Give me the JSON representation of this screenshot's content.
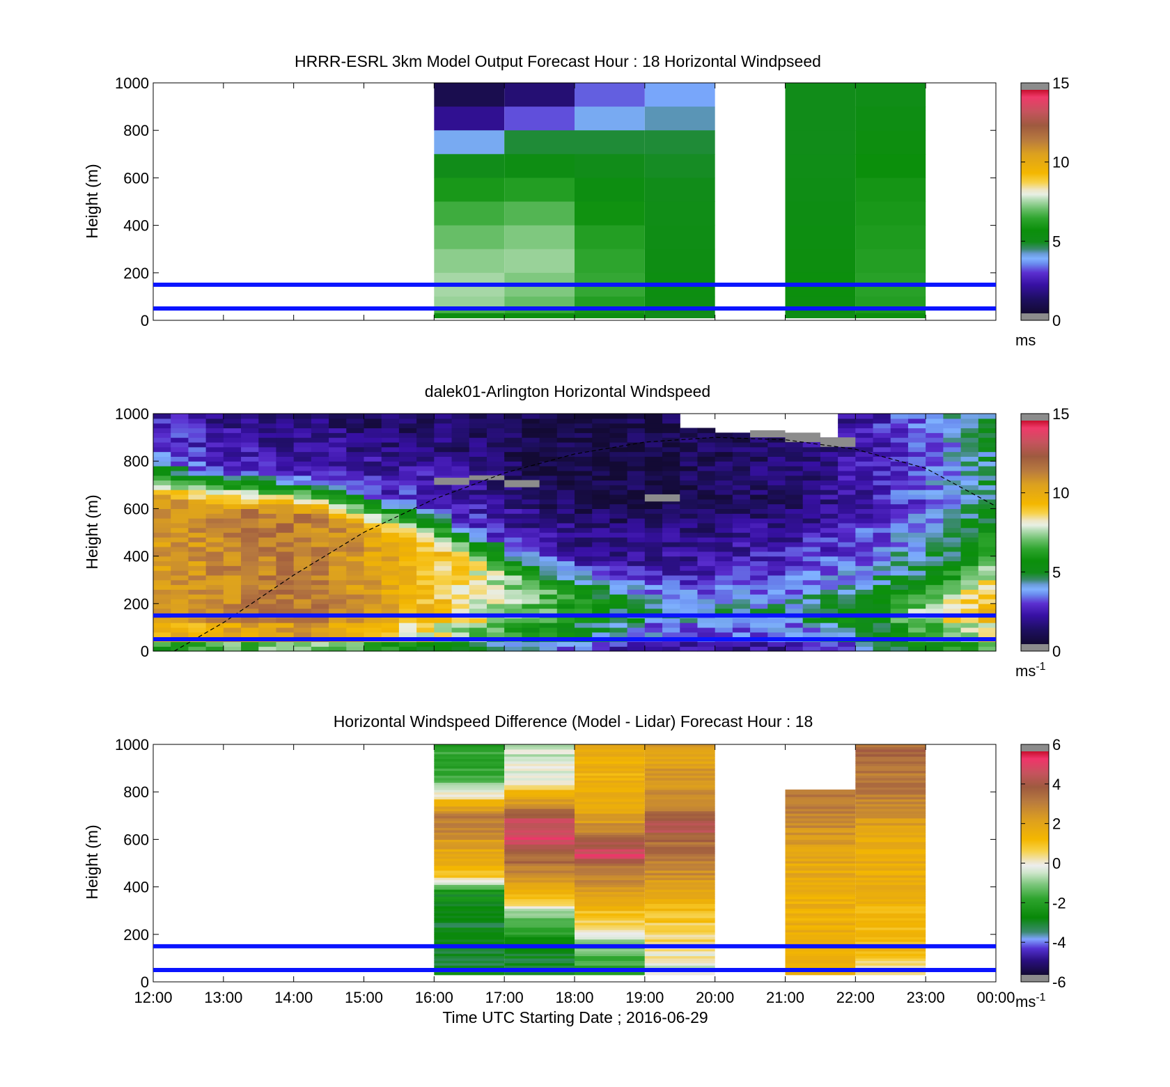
{
  "figure": {
    "xlabel": "Time UTC  Starting Date ; 2016-06-29",
    "x_ticks": [
      "12:00",
      "13:00",
      "14:00",
      "15:00",
      "16:00",
      "17:00",
      "18:00",
      "19:00",
      "20:00",
      "21:00",
      "22:00",
      "23:00",
      "00:00"
    ],
    "reference_lines_m": [
      50,
      150
    ],
    "reference_line_color": "#0a14ff"
  },
  "chart_data": [
    {
      "type": "heatmap",
      "title": "HRRR-ESRL 3km Model Output   Forecast Hour : 18 Horizontal Windpseed",
      "ylabel": "Height (m)",
      "ylim": [
        0,
        1000
      ],
      "y_ticks": [
        0,
        200,
        400,
        600,
        800,
        1000
      ],
      "x_range_hours": [
        12,
        24
      ],
      "colorbar": {
        "ticks": [
          0,
          5,
          10,
          15
        ],
        "range": [
          0,
          15
        ],
        "unit": "ms",
        "unit_sup": "",
        "palette": "windspeed"
      },
      "row_tops_m": [
        1000,
        900,
        800,
        700,
        600,
        500,
        400,
        300,
        200,
        100,
        50,
        30
      ],
      "columns": [
        {
          "hour": 16,
          "values": [
            1.0,
            2.0,
            4.0,
            5.0,
            6.0,
            6.6,
            7.0,
            7.3,
            7.5,
            7.4,
            6.7,
            5.5
          ]
        },
        {
          "hour": 17,
          "values": [
            1.6,
            3.2,
            4.8,
            5.3,
            6.2,
            6.8,
            7.2,
            7.4,
            7.2,
            7.0,
            6.5,
            5.6
          ]
        },
        {
          "hour": 18,
          "values": [
            3.3,
            4.0,
            4.8,
            5.0,
            5.4,
            5.8,
            6.2,
            6.4,
            6.5,
            6.2,
            5.9,
            5.4
          ]
        },
        {
          "hour": 19,
          "values": [
            3.8,
            4.3,
            4.8,
            4.9,
            5.0,
            5.1,
            5.2,
            5.3,
            5.4,
            5.3,
            5.2,
            5.0
          ]
        },
        {
          "hour": 21,
          "values": [
            5.0,
            5.0,
            5.0,
            5.1,
            5.2,
            5.3,
            5.4,
            5.5,
            5.6,
            5.5,
            5.4,
            5.2
          ]
        },
        {
          "hour": 22,
          "values": [
            5.1,
            5.3,
            5.5,
            5.7,
            5.9,
            6.0,
            6.1,
            6.2,
            6.3,
            6.2,
            6.0,
            5.6
          ]
        }
      ]
    },
    {
      "type": "heatmap",
      "title": "dalek01-Arlington  Horizontal Windspeed",
      "ylabel": "Height (m)",
      "ylim": [
        0,
        1000
      ],
      "y_ticks": [
        0,
        200,
        400,
        600,
        800,
        1000
      ],
      "x_range_hours": [
        12,
        24
      ],
      "colorbar": {
        "ticks": [
          0,
          5,
          10,
          15
        ],
        "range": [
          0,
          15
        ],
        "unit": "ms",
        "unit_sup": "-1",
        "palette": "windspeed"
      },
      "profiles": {
        "hours": [
          12,
          12.5,
          13,
          13.5,
          14,
          14.5,
          15,
          15.5,
          16,
          16.5,
          17,
          17.5,
          18,
          18.5,
          19,
          19.5,
          20,
          20.5,
          21,
          21.5,
          22,
          22.5,
          23,
          23.5,
          24
        ],
        "boundary_layer_top_m": [
          650,
          620,
          600,
          590,
          580,
          560,
          520,
          480,
          440,
          380,
          320,
          270,
          240,
          210,
          190,
          180,
          175,
          170,
          160,
          160,
          160,
          160,
          170,
          200,
          260
        ],
        "low_speed": [
          8.6,
          8.8,
          9.2,
          9.5,
          9.7,
          9.5,
          9.0,
          8.5,
          8.0,
          7.5,
          6.8,
          6.2,
          5.8,
          5.2,
          4.8,
          4.6,
          4.4,
          4.6,
          4.8,
          5.2,
          5.8,
          6.8,
          8.0,
          8.8,
          9.5
        ],
        "mixed_speed": [
          10.5,
          10.7,
          11.0,
          11.3,
          11.5,
          11.2,
          10.5,
          9.8,
          9.2,
          8.5,
          7.5,
          6.8,
          6.0,
          5.2,
          4.6,
          4.3,
          4.2,
          4.3,
          4.5,
          4.9,
          5.4,
          6.3,
          7.6,
          8.6,
          9.4
        ],
        "upper_speed": [
          2.0,
          1.8,
          1.5,
          1.4,
          1.3,
          1.3,
          1.3,
          1.4,
          1.6,
          1.5,
          1.2,
          0.9,
          0.8,
          0.8,
          0.9,
          1.0,
          1.1,
          1.3,
          1.5,
          1.9,
          2.3,
          2.8,
          3.4,
          4.0,
          4.6
        ]
      },
      "curve": {
        "x_hours": [
          12.3,
          13,
          14,
          15,
          16,
          17,
          18,
          19,
          20,
          21,
          22,
          23,
          24
        ],
        "y_m": [
          0,
          120,
          320,
          500,
          640,
          750,
          830,
          880,
          900,
          890,
          850,
          770,
          610
        ]
      },
      "missing_cells": [
        {
          "hour": 16.0,
          "bottom_m": 700,
          "top_m": 730
        },
        {
          "hour": 16.5,
          "bottom_m": 720,
          "top_m": 740
        },
        {
          "hour": 17.0,
          "bottom_m": 690,
          "top_m": 720
        },
        {
          "hour": 19.0,
          "bottom_m": 630,
          "top_m": 660
        },
        {
          "hour": 20.5,
          "bottom_m": 900,
          "top_m": 930
        },
        {
          "hour": 21.0,
          "bottom_m": 880,
          "top_m": 920
        },
        {
          "hour": 21.5,
          "bottom_m": 860,
          "top_m": 900
        }
      ]
    },
    {
      "type": "heatmap",
      "title": "Horizontal Windspeed Difference (Model - Lidar) Forecast Hour : 18",
      "ylabel": "Height (m)",
      "ylim": [
        0,
        1000
      ],
      "y_ticks": [
        0,
        200,
        400,
        600,
        800,
        1000
      ],
      "x_range_hours": [
        12,
        24
      ],
      "colorbar": {
        "ticks": [
          -6,
          -4,
          -2,
          0,
          2,
          4,
          6
        ],
        "range": [
          -6,
          6
        ],
        "unit": "ms",
        "unit_sup": "-1",
        "palette": "difference"
      },
      "columns": [
        {
          "hour": 16,
          "top_m": 1000,
          "knots_m": [
            30,
            150,
            300,
            380,
            450,
            550,
            650,
            700,
            780,
            850,
            980
          ],
          "knots_v": [
            -3.0,
            -3.0,
            -3.0,
            -2.5,
            1.0,
            1.8,
            3.0,
            3.0,
            0.5,
            -1.5,
            -2.0
          ]
        },
        {
          "hour": 17,
          "top_m": 1000,
          "knots_m": [
            30,
            150,
            250,
            320,
            380,
            450,
            550,
            620,
            680,
            780,
            850,
            980
          ],
          "knots_v": [
            -3.0,
            -2.8,
            -1.5,
            0.0,
            1.5,
            2.5,
            4.0,
            5.0,
            4.5,
            1.8,
            0.0,
            -0.5
          ]
        },
        {
          "hour": 18,
          "top_m": 1000,
          "knots_m": [
            30,
            150,
            250,
            400,
            500,
            530,
            600,
            700,
            800,
            980
          ],
          "knots_v": [
            -2.0,
            -1.0,
            0.5,
            2.5,
            3.5,
            5.0,
            3.5,
            2.0,
            1.5,
            1.5
          ]
        },
        {
          "hour": 19,
          "top_m": 1000,
          "knots_m": [
            30,
            150,
            250,
            400,
            500,
            600,
            650,
            700,
            800,
            980
          ],
          "knots_v": [
            -0.5,
            0.3,
            0.8,
            2.0,
            3.0,
            3.5,
            4.5,
            3.5,
            2.5,
            2.0
          ]
        },
        {
          "hour": 21,
          "top_m": 810,
          "knots_m": [
            30,
            300,
            500,
            700,
            800
          ],
          "knots_v": [
            1.5,
            1.5,
            1.8,
            2.8,
            3.2
          ]
        },
        {
          "hour": 22,
          "top_m": 1000,
          "knots_m": [
            30,
            150,
            400,
            600,
            800,
            980
          ],
          "knots_v": [
            0.2,
            1.2,
            1.5,
            1.8,
            3.0,
            3.5
          ]
        }
      ]
    }
  ]
}
